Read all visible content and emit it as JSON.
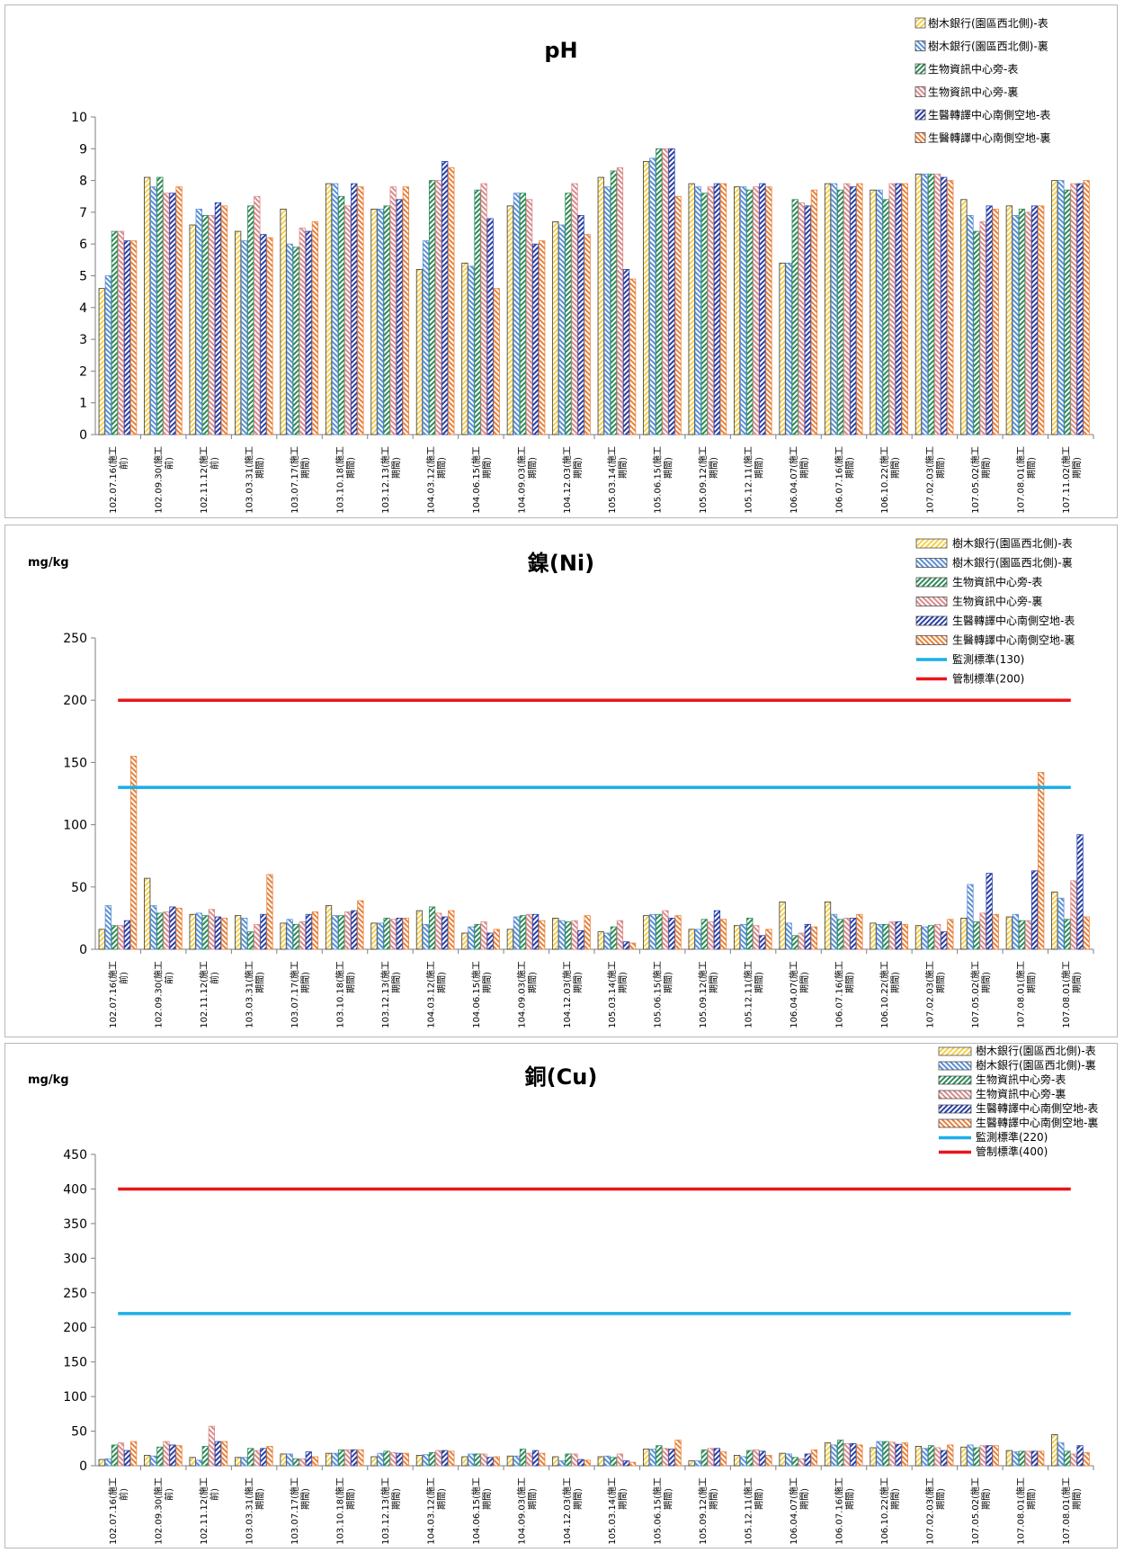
{
  "palette": {
    "s1": "#f5d04c",
    "s2": "#5b8fd6",
    "s3": "#2e8b57",
    "s4": "#d98a8a",
    "s5": "#2840a8",
    "s6": "#e8823c",
    "monitor_line": "#1aaee8",
    "control_line": "#e8161b"
  },
  "chart_data": [
    {
      "type": "bar",
      "title": "pH",
      "unit": "",
      "ylim": [
        0,
        10
      ],
      "yticks": [
        0,
        1,
        2,
        3,
        4,
        5,
        6,
        7,
        8,
        9,
        10
      ],
      "categories": [
        [
          "102.07.16(施工",
          "前)"
        ],
        [
          "102.09.30(施工",
          "前)"
        ],
        [
          "102.11.12(施工",
          "前)"
        ],
        [
          "103.03.31(施工",
          "期間)"
        ],
        [
          "103.07.17(施工",
          "期間)"
        ],
        [
          "103.10.18(施工",
          "期間)"
        ],
        [
          "103.12.13(施工",
          "期間)"
        ],
        [
          "104.03.12(施工",
          "期間)"
        ],
        [
          "104.06.15(施工",
          "期間)"
        ],
        [
          "104.09.03(施工",
          "期間)"
        ],
        [
          "104.12.03(施工",
          "期間)"
        ],
        [
          "105.03.14(施工",
          "期間)"
        ],
        [
          "105.06.15(施工",
          "期間)"
        ],
        [
          "105.09.12(施工",
          "期間)"
        ],
        [
          "105.12.11(施工",
          "期間)"
        ],
        [
          "106.04.07(施工",
          "期間)"
        ],
        [
          "106.07.16(施工",
          "期間)"
        ],
        [
          "106.10.22(施工",
          "期間)"
        ],
        [
          "107.02.03(施工",
          "期間)"
        ],
        [
          "107.05.02(施工",
          "期間)"
        ],
        [
          "107.08.01(施工",
          "期間)"
        ],
        [
          "107.11.02(施工",
          "期間)"
        ]
      ],
      "series": [
        {
          "name": "樹木銀行(園區西北側)-表",
          "values": [
            4.6,
            8.1,
            6.6,
            6.4,
            7.1,
            7.9,
            7.1,
            5.2,
            5.4,
            7.2,
            6.7,
            8.1,
            8.6,
            7.9,
            7.8,
            5.4,
            7.9,
            7.7,
            8.2,
            7.4,
            7.2,
            8.0
          ]
        },
        {
          "name": "樹木銀行(園區西北側)-裏",
          "values": [
            5.0,
            7.8,
            7.1,
            6.1,
            6.0,
            7.9,
            7.1,
            6.1,
            5.3,
            7.6,
            6.6,
            7.8,
            8.7,
            7.8,
            7.8,
            5.4,
            7.9,
            7.7,
            8.2,
            6.9,
            6.9,
            8.0
          ]
        },
        {
          "name": "生物資訊中心旁-表",
          "values": [
            6.4,
            8.1,
            6.9,
            7.2,
            5.9,
            7.5,
            7.2,
            8.0,
            7.7,
            7.6,
            7.6,
            8.3,
            9.0,
            7.6,
            7.7,
            7.4,
            7.7,
            7.4,
            8.2,
            6.4,
            7.1,
            7.7
          ]
        },
        {
          "name": "生物資訊中心旁-裏",
          "values": [
            6.4,
            7.6,
            6.9,
            7.5,
            6.5,
            7.2,
            7.8,
            8.0,
            7.9,
            7.4,
            7.9,
            8.4,
            9.0,
            7.8,
            7.8,
            7.3,
            7.9,
            7.9,
            8.2,
            6.7,
            7.0,
            7.9
          ]
        },
        {
          "name": "生醫轉譯中心南側空地-表",
          "values": [
            6.1,
            7.6,
            7.3,
            6.3,
            6.4,
            7.9,
            7.4,
            8.6,
            6.8,
            6.0,
            6.9,
            5.2,
            9.0,
            7.9,
            7.9,
            7.2,
            7.8,
            7.9,
            8.1,
            7.2,
            7.2,
            7.9
          ]
        },
        {
          "name": "生醫轉譯中心南側空地-裏",
          "values": [
            6.1,
            7.8,
            7.2,
            6.2,
            6.7,
            7.8,
            7.8,
            8.4,
            4.6,
            6.1,
            6.3,
            4.9,
            7.5,
            7.9,
            7.8,
            7.7,
            7.9,
            7.9,
            8.0,
            7.1,
            7.2,
            8.0
          ]
        }
      ],
      "lines": [],
      "legend_position": "top-right"
    },
    {
      "type": "bar",
      "title": "鎳(Ni)",
      "unit": "mg/kg",
      "ylim": [
        0,
        250
      ],
      "yticks": [
        0,
        50,
        100,
        150,
        200,
        250
      ],
      "categories": [
        [
          "102.07.16(施工",
          "前)"
        ],
        [
          "102.09.30(施工",
          "前)"
        ],
        [
          "102.11.12(施工",
          "前)"
        ],
        [
          "103.03.31(施工",
          "期間)"
        ],
        [
          "103.07.17(施工",
          "期間)"
        ],
        [
          "103.10.18(施工",
          "期間)"
        ],
        [
          "103.12.13(施工",
          "期間)"
        ],
        [
          "104.03.12(施工",
          "期間)"
        ],
        [
          "104.06.15(施工",
          "期間)"
        ],
        [
          "104.09.03(施工",
          "期間)"
        ],
        [
          "104.12.03(施工",
          "期間)"
        ],
        [
          "105.03.14(施工",
          "期間)"
        ],
        [
          "105.06.15(施工",
          "期間)"
        ],
        [
          "105.09.12(施工",
          "期間)"
        ],
        [
          "105.12.11(施工",
          "期間)"
        ],
        [
          "106.04.07(施工",
          "期間)"
        ],
        [
          "106.07.16(施工",
          "期間)"
        ],
        [
          "106.10.22(施工",
          "期間)"
        ],
        [
          "107.02.03(施工",
          "期間)"
        ],
        [
          "107.05.02(施工",
          "期間)"
        ],
        [
          "107.08.01(施工",
          "期間)"
        ],
        [
          "107.08.01(施工",
          "期間)"
        ]
      ],
      "series": [
        {
          "name": "樹木銀行(園區西北側)-表",
          "values": [
            16,
            57,
            28,
            27,
            21,
            35,
            21,
            31,
            13,
            16,
            25,
            14,
            27,
            16,
            19,
            38,
            38,
            21,
            19,
            25,
            26,
            46
          ]
        },
        {
          "name": "樹木銀行(園區西北側)-裏",
          "values": [
            35,
            35,
            29,
            25,
            24,
            27,
            21,
            20,
            18,
            26,
            23,
            13,
            28,
            16,
            20,
            21,
            28,
            20,
            18,
            52,
            28,
            41
          ]
        },
        {
          "name": "生物資訊中心旁-表",
          "values": [
            19,
            29,
            27,
            14,
            20,
            27,
            25,
            34,
            20,
            27,
            22,
            18,
            28,
            24,
            25,
            11,
            24,
            20,
            19,
            22,
            23,
            24
          ]
        },
        {
          "name": "生物資訊中心旁-裏",
          "values": [
            19,
            30,
            32,
            20,
            22,
            30,
            24,
            29,
            22,
            28,
            23,
            23,
            31,
            22,
            19,
            13,
            25,
            22,
            20,
            29,
            23,
            55
          ]
        },
        {
          "name": "生醫轉譯中心南側空地-表",
          "values": [
            23,
            34,
            26,
            28,
            28,
            31,
            25,
            26,
            13,
            28,
            15,
            6,
            25,
            31,
            11,
            20,
            25,
            22,
            14,
            61,
            63,
            92
          ]
        },
        {
          "name": "生醫轉譯中心南側空地-裏",
          "values": [
            155,
            33,
            25,
            60,
            30,
            39,
            25,
            31,
            16,
            23,
            27,
            5,
            27,
            24,
            16,
            18,
            28,
            20,
            24,
            28,
            142,
            26
          ]
        }
      ],
      "lines": [
        {
          "name": "監測標準(130)",
          "value": 130
        },
        {
          "name": "管制標準(200)",
          "value": 200
        }
      ],
      "legend_position": "top-right"
    },
    {
      "type": "bar",
      "title": "銅(Cu)",
      "unit": "mg/kg",
      "ylim": [
        0,
        450
      ],
      "yticks": [
        0,
        50,
        100,
        150,
        200,
        250,
        300,
        350,
        400,
        450
      ],
      "categories": [
        [
          "102.07.16(施工",
          "前)"
        ],
        [
          "102.09.30(施工",
          "前)"
        ],
        [
          "102.11.12(施工",
          "前)"
        ],
        [
          "103.03.31(施工",
          "期間)"
        ],
        [
          "103.07.17(施工",
          "期間)"
        ],
        [
          "103.10.18(施工",
          "期間)"
        ],
        [
          "103.12.13(施工",
          "期間)"
        ],
        [
          "104.03.12(施工",
          "期間)"
        ],
        [
          "104.06.15(施工",
          "期間)"
        ],
        [
          "104.09.03(施工",
          "期間)"
        ],
        [
          "104.12.03(施工",
          "期間)"
        ],
        [
          "105.03.14(施工",
          "期間)"
        ],
        [
          "105.06.15(施工",
          "期間)"
        ],
        [
          "105.09.12(施工",
          "期間)"
        ],
        [
          "105.12.11(施工",
          "期間)"
        ],
        [
          "106.04.07(施工",
          "期間)"
        ],
        [
          "106.07.16(施工",
          "期間)"
        ],
        [
          "106.10.22(施工",
          "期間)"
        ],
        [
          "107.02.03(施工",
          "期間)"
        ],
        [
          "107.05.02(施工",
          "期間)"
        ],
        [
          "107.08.01(施工",
          "期間)"
        ],
        [
          "107.08.01(施工",
          "期間)"
        ]
      ],
      "series": [
        {
          "name": "樹木銀行(園區西北側)-表",
          "values": [
            9,
            15,
            12,
            12,
            17,
            18,
            13,
            15,
            13,
            14,
            13,
            13,
            24,
            7,
            15,
            18,
            33,
            26,
            28,
            27,
            22,
            45
          ]
        },
        {
          "name": "樹木銀行(園區西北側)-裏",
          "values": [
            10,
            14,
            8,
            12,
            17,
            18,
            18,
            16,
            17,
            14,
            7,
            14,
            24,
            7,
            13,
            17,
            30,
            35,
            25,
            30,
            20,
            33
          ]
        },
        {
          "name": "生物資訊中心旁-表",
          "values": [
            30,
            27,
            28,
            25,
            10,
            23,
            21,
            19,
            17,
            24,
            17,
            12,
            29,
            23,
            22,
            12,
            37,
            35,
            29,
            26,
            21,
            21
          ]
        },
        {
          "name": "生物資訊中心旁-裏",
          "values": [
            33,
            35,
            57,
            22,
            10,
            23,
            19,
            22,
            17,
            18,
            17,
            17,
            25,
            25,
            23,
            10,
            32,
            34,
            26,
            29,
            21,
            17
          ]
        },
        {
          "name": "生醫轉譯中心南側空地-表",
          "values": [
            22,
            30,
            35,
            25,
            20,
            23,
            18,
            22,
            12,
            22,
            9,
            7,
            24,
            25,
            21,
            17,
            32,
            31,
            22,
            29,
            21,
            29
          ]
        },
        {
          "name": "生醫轉譯中心南側空地-裏",
          "values": [
            35,
            29,
            35,
            28,
            13,
            23,
            18,
            21,
            13,
            18,
            8,
            5,
            37,
            20,
            15,
            23,
            30,
            33,
            30,
            29,
            21,
            19
          ]
        }
      ],
      "lines": [
        {
          "name": "監測標準(220)",
          "value": 220
        },
        {
          "name": "管制標準(400)",
          "value": 400
        }
      ],
      "legend_position": "top-right"
    }
  ]
}
